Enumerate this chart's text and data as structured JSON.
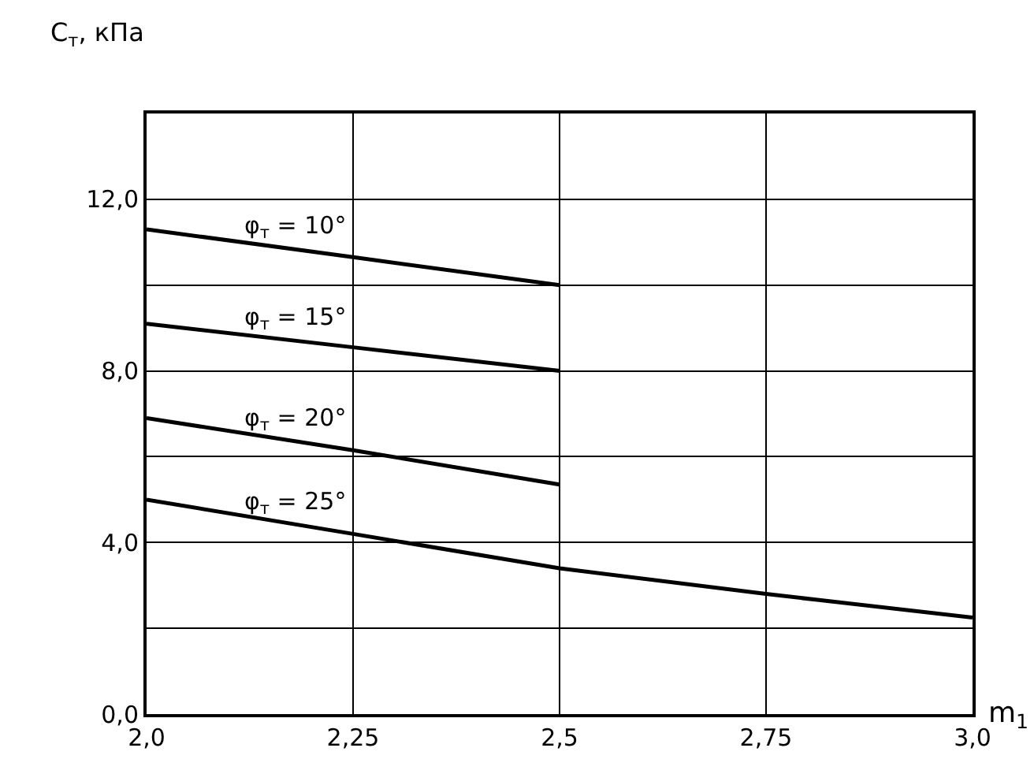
{
  "chart_data": {
    "type": "line",
    "xlabel": "m$_{1}$",
    "ylabel": "C$_{т}$, кПа",
    "xlim": [
      2.0,
      3.0
    ],
    "ylim": [
      0,
      14
    ],
    "xticks": [
      {
        "value": 2.0,
        "label": "2,0"
      },
      {
        "value": 2.25,
        "label": "2,25"
      },
      {
        "value": 2.5,
        "label": "2,5"
      },
      {
        "value": 2.75,
        "label": "2,75"
      },
      {
        "value": 3.0,
        "label": "3,0"
      }
    ],
    "yticks": [
      {
        "value": 0,
        "label": "0,0"
      },
      {
        "value": 2,
        "label": null
      },
      {
        "value": 4,
        "label": "4,0"
      },
      {
        "value": 6,
        "label": null
      },
      {
        "value": 8,
        "label": "8,0"
      },
      {
        "value": 10,
        "label": null
      },
      {
        "value": 12,
        "label": "12,0"
      }
    ],
    "grid": true,
    "legend": false,
    "marker": "none",
    "line_style": "solid",
    "series": [
      {
        "name": "φ$_{т}$ = 10°",
        "color": "#000000",
        "x": [
          2.0,
          2.25,
          2.5
        ],
        "values": [
          11.3,
          10.65,
          10.0
        ]
      },
      {
        "name": "φ$_{т}$ = 15°",
        "color": "#000000",
        "x": [
          2.0,
          2.25,
          2.5
        ],
        "values": [
          9.1,
          8.55,
          8.0
        ]
      },
      {
        "name": "φ$_{т}$ = 20°",
        "color": "#000000",
        "x": [
          2.0,
          2.25,
          2.5
        ],
        "values": [
          6.9,
          6.15,
          5.35
        ]
      },
      {
        "name": "φ$_{т}$ = 25°",
        "color": "#000000",
        "x": [
          2.0,
          2.25,
          2.5,
          2.75,
          3.0
        ],
        "values": [
          5.0,
          4.2,
          3.4,
          2.8,
          2.25
        ]
      }
    ]
  }
}
